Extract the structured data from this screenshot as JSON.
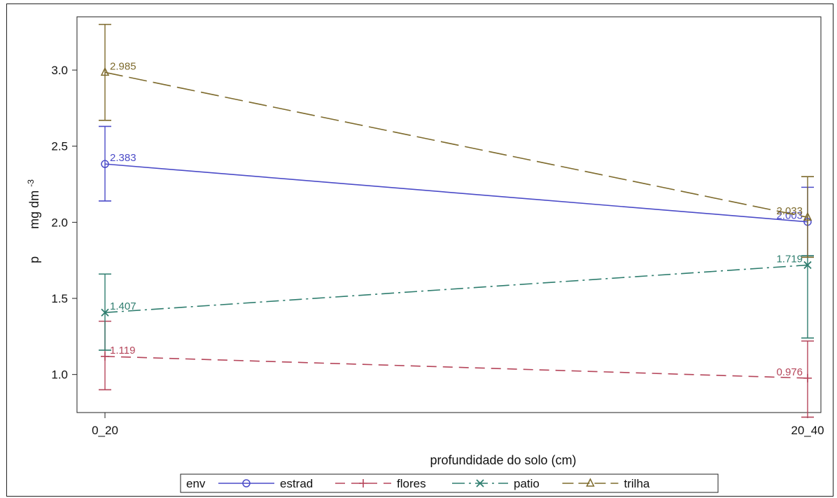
{
  "chart_data": {
    "type": "line",
    "categories": [
      "0_20",
      "20_40"
    ],
    "xlabel": "profundidade do solo (cm)",
    "ylabel": {
      "symbol": "p",
      "unit": "mg dm",
      "exponent": "-3"
    },
    "ylim": [
      0.75,
      3.35
    ],
    "yticks": [
      "1.0",
      "1.5",
      "2.0",
      "2.5",
      "3.0"
    ],
    "grid": false,
    "legend": {
      "position": "bottom",
      "title": "env"
    },
    "series": [
      {
        "name": "estrad",
        "color": "#4b4bc8",
        "marker": "circle",
        "dash": "",
        "values": [
          2.383,
          2.003
        ],
        "labels": [
          "2.383",
          "2.003"
        ],
        "err_low": [
          2.14,
          1.78
        ],
        "err_high": [
          2.63,
          2.23
        ]
      },
      {
        "name": "flores",
        "color": "#b5455a",
        "marker": "plus",
        "dash": "14,9",
        "values": [
          1.119,
          0.976
        ],
        "labels": [
          "1.119",
          "0.976"
        ],
        "err_low": [
          0.9,
          0.72
        ],
        "err_high": [
          1.35,
          1.22
        ]
      },
      {
        "name": "patio",
        "color": "#2e7d6e",
        "marker": "x",
        "dash": "18,6,3,6",
        "values": [
          1.407,
          1.719
        ],
        "labels": [
          "1.407",
          "1.719"
        ],
        "err_low": [
          1.16,
          1.24
        ],
        "err_high": [
          1.66,
          1.78
        ]
      },
      {
        "name": "trilha",
        "color": "#7d6a2c",
        "marker": "triangle",
        "dash": "26,9",
        "values": [
          2.985,
          2.033
        ],
        "labels": [
          "2.985",
          "2.033"
        ],
        "err_low": [
          2.67,
          1.77
        ],
        "err_high": [
          3.3,
          2.3
        ]
      }
    ]
  }
}
